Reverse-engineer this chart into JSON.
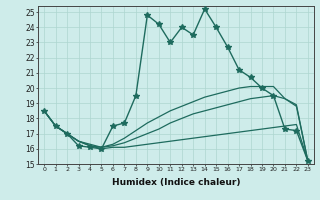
{
  "xlabel": "Humidex (Indice chaleur)",
  "ylabel": "",
  "bg_color": "#ceecea",
  "line_color": "#1e6b5e",
  "grid_color": "#aed6d0",
  "xlim": [
    -0.5,
    23.5
  ],
  "ylim": [
    15,
    25.4
  ],
  "xticks": [
    0,
    1,
    2,
    3,
    4,
    5,
    6,
    7,
    8,
    9,
    10,
    11,
    12,
    13,
    14,
    15,
    16,
    17,
    18,
    19,
    20,
    21,
    22,
    23
  ],
  "yticks": [
    15,
    16,
    17,
    18,
    19,
    20,
    21,
    22,
    23,
    24,
    25
  ],
  "line1_x": [
    0,
    1,
    2,
    3,
    4,
    5,
    6,
    7,
    8,
    9,
    10,
    11,
    12,
    13,
    14,
    15,
    16,
    17,
    18,
    19,
    20,
    21,
    22,
    23
  ],
  "line1_y": [
    18.5,
    17.5,
    17.0,
    16.2,
    16.1,
    16.0,
    17.5,
    17.7,
    19.5,
    24.8,
    24.2,
    23.0,
    24.0,
    23.5,
    25.2,
    24.0,
    22.7,
    21.2,
    20.7,
    20.0,
    19.5,
    17.3,
    17.2,
    15.2
  ],
  "line2_x": [
    0,
    1,
    2,
    3,
    4,
    5,
    6,
    7,
    8,
    9,
    10,
    11,
    12,
    13,
    14,
    15,
    16,
    17,
    18,
    19,
    20,
    21,
    22,
    23
  ],
  "line2_y": [
    18.5,
    17.5,
    17.0,
    16.5,
    16.2,
    16.0,
    16.1,
    16.1,
    16.2,
    16.3,
    16.4,
    16.5,
    16.6,
    16.7,
    16.8,
    16.9,
    17.0,
    17.1,
    17.2,
    17.3,
    17.4,
    17.5,
    17.6,
    15.2
  ],
  "line3_x": [
    0,
    1,
    2,
    3,
    4,
    5,
    6,
    7,
    8,
    9,
    10,
    11,
    12,
    13,
    14,
    15,
    16,
    17,
    18,
    19,
    20,
    21,
    22,
    23
  ],
  "line3_y": [
    18.5,
    17.5,
    17.0,
    16.5,
    16.2,
    16.1,
    16.2,
    16.4,
    16.7,
    17.0,
    17.3,
    17.7,
    18.0,
    18.3,
    18.5,
    18.7,
    18.9,
    19.1,
    19.3,
    19.4,
    19.5,
    19.3,
    18.8,
    15.2
  ],
  "line4_x": [
    0,
    1,
    2,
    3,
    4,
    5,
    6,
    7,
    8,
    9,
    10,
    11,
    12,
    13,
    14,
    15,
    16,
    17,
    18,
    19,
    20,
    21,
    22,
    23
  ],
  "line4_y": [
    18.5,
    17.5,
    17.0,
    16.5,
    16.3,
    16.1,
    16.3,
    16.7,
    17.2,
    17.7,
    18.1,
    18.5,
    18.8,
    19.1,
    19.4,
    19.6,
    19.8,
    20.0,
    20.1,
    20.1,
    20.1,
    19.3,
    18.9,
    15.2
  ]
}
